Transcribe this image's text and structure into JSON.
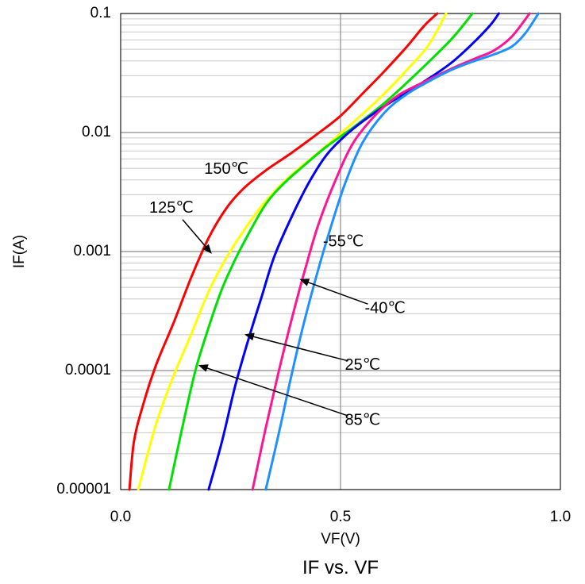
{
  "chart_data": {
    "type": "line",
    "title": "IF vs. VF",
    "xlabel": "VF(V)",
    "ylabel": "IF(A)",
    "xlim": [
      0,
      1.0
    ],
    "ylim": [
      1e-05,
      0.1
    ],
    "y_scale": "log",
    "grid": true,
    "x_ticks": [
      {
        "value": 0,
        "label": "0.0"
      },
      {
        "value": 0.5,
        "label": "0.5"
      },
      {
        "value": 1.0,
        "label": "1.0"
      }
    ],
    "y_ticks": [
      {
        "value": 1e-05,
        "label": "0.00001"
      },
      {
        "value": 0.0001,
        "label": "0.0001"
      },
      {
        "value": 0.001,
        "label": "0.001"
      },
      {
        "value": 0.01,
        "label": "0.01"
      },
      {
        "value": 0.1,
        "label": "0.1"
      }
    ],
    "series": [
      {
        "name": "150℃",
        "color": "#ff0000",
        "x": [
          0.02,
          0.03,
          0.05,
          0.08,
          0.12,
          0.16,
          0.2,
          0.24,
          0.28,
          0.33,
          0.39,
          0.45,
          0.5,
          0.55,
          0.6,
          0.65,
          0.69,
          0.72
        ],
        "y": [
          1e-05,
          2.5e-05,
          5e-05,
          0.00011,
          0.00025,
          0.0006,
          0.0013,
          0.0023,
          0.0034,
          0.0048,
          0.0068,
          0.0099,
          0.0138,
          0.0212,
          0.0328,
          0.0522,
          0.0786,
          0.1
        ]
      },
      {
        "name": "125℃",
        "color": "#ffff00",
        "x": [
          0.04,
          0.08,
          0.12,
          0.16,
          0.2,
          0.24,
          0.28,
          0.32,
          0.36,
          0.4,
          0.45,
          0.5,
          0.55,
          0.6,
          0.65,
          0.7,
          0.74
        ],
        "y": [
          1e-05,
          3.5e-05,
          9e-05,
          0.0002,
          0.00046,
          0.00088,
          0.0015,
          0.0024,
          0.0035,
          0.0048,
          0.0068,
          0.0098,
          0.0143,
          0.0213,
          0.0333,
          0.0542,
          0.1
        ]
      },
      {
        "name": "85℃",
        "color": "#00e000",
        "x": [
          0.11,
          0.14,
          0.17,
          0.2,
          0.23,
          0.26,
          0.29,
          0.33,
          0.37,
          0.42,
          0.47,
          0.53,
          0.6,
          0.66,
          0.72,
          0.76,
          0.8
        ],
        "y": [
          1e-05,
          3.3e-05,
          0.0001,
          0.00023,
          0.00048,
          0.00085,
          0.00139,
          0.0025,
          0.0037,
          0.0054,
          0.0077,
          0.0111,
          0.0177,
          0.0282,
          0.0461,
          0.0655,
          0.1
        ]
      },
      {
        "name": "25℃",
        "color": "#0000ff",
        "x": [
          0.2,
          0.23,
          0.26,
          0.29,
          0.32,
          0.35,
          0.39,
          0.43,
          0.47,
          0.52,
          0.57,
          0.63,
          0.69,
          0.75,
          0.8,
          0.84,
          0.86
        ],
        "y": [
          1e-05,
          2.5e-05,
          7.3e-05,
          0.00018,
          0.00041,
          0.00092,
          0.002,
          0.0039,
          0.0066,
          0.0101,
          0.014,
          0.0196,
          0.0268,
          0.038,
          0.0557,
          0.0794,
          0.1
        ]
      },
      {
        "name": "-40℃",
        "color": "#ff1493",
        "x": [
          0.3,
          0.33,
          0.36,
          0.39,
          0.42,
          0.45,
          0.49,
          0.53,
          0.58,
          0.63,
          0.68,
          0.73,
          0.77,
          0.81,
          0.85,
          0.89,
          0.93
        ],
        "y": [
          1e-05,
          3.3e-05,
          0.0001,
          0.00028,
          0.00072,
          0.0017,
          0.0041,
          0.0083,
          0.0141,
          0.0204,
          0.0255,
          0.0314,
          0.0368,
          0.0424,
          0.0491,
          0.0643,
          0.1
        ]
      },
      {
        "name": "-55℃",
        "color": "#1e90ff",
        "x": [
          0.33,
          0.36,
          0.39,
          0.42,
          0.45,
          0.48,
          0.51,
          0.55,
          0.6,
          0.65,
          0.7,
          0.75,
          0.8,
          0.85,
          0.89,
          0.92,
          0.95
        ],
        "y": [
          1e-05,
          3e-05,
          9.7e-05,
          0.00028,
          0.00072,
          0.0017,
          0.0037,
          0.0082,
          0.0147,
          0.0209,
          0.0268,
          0.0333,
          0.0394,
          0.0454,
          0.0529,
          0.068,
          0.1
        ]
      }
    ],
    "annotations": [
      {
        "text": "150℃",
        "x": 0.19,
        "y": 0.0049,
        "arrow": false
      },
      {
        "text": "125℃",
        "x": 0.065,
        "y": 0.0023,
        "arrow_to": {
          "x": 0.205,
          "y": 0.00098
        }
      },
      {
        "text": "-55℃",
        "x": 0.46,
        "y": 0.0012,
        "arrow": false
      },
      {
        "text": "-40℃",
        "x": 0.555,
        "y": 0.00033,
        "arrow_to": {
          "x": 0.41,
          "y": 0.00058
        }
      },
      {
        "text": "25℃",
        "x": 0.51,
        "y": 0.00011,
        "arrow_to": {
          "x": 0.285,
          "y": 0.0002
        }
      },
      {
        "text": "85℃",
        "x": 0.51,
        "y": 3.8e-05,
        "arrow_to": {
          "x": 0.18,
          "y": 0.00011
        }
      }
    ]
  }
}
